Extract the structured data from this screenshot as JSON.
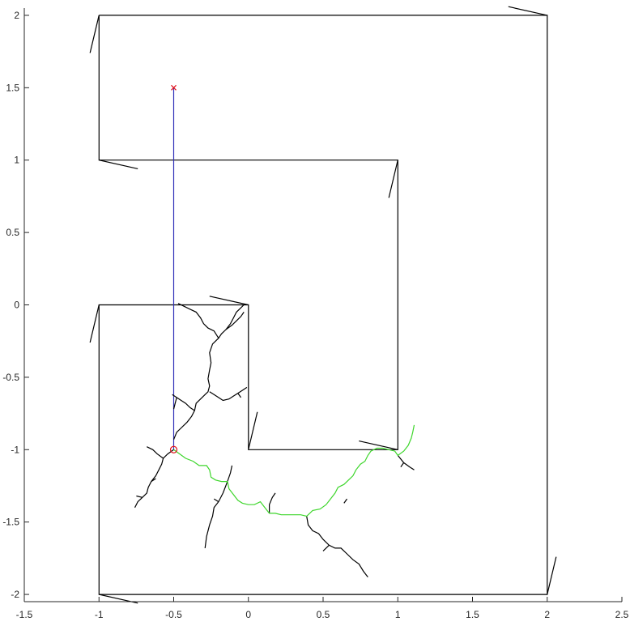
{
  "chart_data": {
    "type": "line",
    "title": "",
    "xlabel": "",
    "ylabel": "",
    "xlim": [
      -1.5,
      2.5
    ],
    "ylim": [
      -2.05,
      2.05
    ],
    "grid": false,
    "x_ticks": [
      {
        "value": -1.5,
        "label": "-1.5"
      },
      {
        "value": -1,
        "label": "-1"
      },
      {
        "value": -0.5,
        "label": "-0.5"
      },
      {
        "value": 0,
        "label": "0"
      },
      {
        "value": 0.5,
        "label": "0.5"
      },
      {
        "value": 1,
        "label": "1"
      },
      {
        "value": 1.5,
        "label": "1.5"
      },
      {
        "value": 2,
        "label": "2"
      },
      {
        "value": 2.5,
        "label": "2.5"
      }
    ],
    "y_ticks": [
      {
        "value": 2,
        "label": "2"
      },
      {
        "value": 1.5,
        "label": "1.5"
      },
      {
        "value": 1,
        "label": "1"
      },
      {
        "value": 0.5,
        "label": "0.5"
      },
      {
        "value": 0,
        "label": "0"
      },
      {
        "value": -0.5,
        "label": "-0.5"
      },
      {
        "value": -1,
        "label": "-1"
      },
      {
        "value": -1.5,
        "label": "-1.5"
      },
      {
        "value": -2,
        "label": "-2"
      }
    ],
    "series": [
      {
        "role": "obstacle-boundary",
        "color": "#000000",
        "points": [
          [
            -1,
            2
          ],
          [
            2,
            2
          ],
          [
            2,
            -2
          ],
          [
            -1,
            -2
          ],
          [
            -1,
            0
          ],
          [
            0,
            0
          ],
          [
            0,
            -1
          ],
          [
            1,
            -1
          ],
          [
            1,
            1
          ],
          [
            -1,
            1
          ],
          [
            -1,
            2
          ]
        ]
      },
      {
        "role": "corner-normals",
        "color": "#000000",
        "segments": [
          [
            [
              -1,
              2
            ],
            [
              -1.06,
              1.74
            ]
          ],
          [
            [
              2,
              2
            ],
            [
              1.74,
              2.06
            ]
          ],
          [
            [
              2,
              -2
            ],
            [
              2.06,
              -1.74
            ]
          ],
          [
            [
              -1,
              -2
            ],
            [
              -0.74,
              -2.06
            ]
          ],
          [
            [
              -1,
              0
            ],
            [
              -1.06,
              -0.26
            ]
          ],
          [
            [
              0,
              0
            ],
            [
              -0.26,
              0.06
            ]
          ],
          [
            [
              0,
              -1
            ],
            [
              0.06,
              -0.74
            ]
          ],
          [
            [
              1,
              -1
            ],
            [
              0.74,
              -0.94
            ]
          ],
          [
            [
              1,
              1
            ],
            [
              0.94,
              0.74
            ]
          ],
          [
            [
              -1,
              1
            ],
            [
              -0.74,
              0.94
            ]
          ]
        ]
      },
      {
        "role": "path-to-goal",
        "color": "#2e2eb8",
        "points": [
          [
            -0.5,
            -1
          ],
          [
            -0.5,
            1.5
          ]
        ]
      },
      {
        "role": "explored-tree",
        "color": "#000000",
        "polylines": [
          [
            [
              -0.5,
              -0.93
            ],
            [
              -0.48,
              -0.88
            ],
            [
              -0.45,
              -0.85
            ],
            [
              -0.41,
              -0.81
            ],
            [
              -0.38,
              -0.77
            ],
            [
              -0.36,
              -0.73
            ],
            [
              -0.35,
              -0.68
            ],
            [
              -0.32,
              -0.65
            ],
            [
              -0.29,
              -0.62
            ],
            [
              -0.27,
              -0.6
            ],
            [
              -0.26,
              -0.56
            ],
            [
              -0.27,
              -0.51
            ],
            [
              -0.26,
              -0.45
            ],
            [
              -0.25,
              -0.4
            ],
            [
              -0.26,
              -0.33
            ],
            [
              -0.24,
              -0.27
            ],
            [
              -0.2,
              -0.23
            ],
            [
              -0.18,
              -0.2
            ],
            [
              -0.15,
              -0.17
            ],
            [
              -0.12,
              -0.13
            ],
            [
              -0.1,
              -0.09
            ],
            [
              -0.08,
              -0.05
            ],
            [
              -0.05,
              -0.02
            ],
            [
              -0.03,
              0
            ]
          ],
          [
            [
              -0.2,
              -0.23
            ],
            [
              -0.23,
              -0.18
            ],
            [
              -0.27,
              -0.16
            ],
            [
              -0.3,
              -0.13
            ],
            [
              -0.32,
              -0.09
            ],
            [
              -0.35,
              -0.05
            ],
            [
              -0.39,
              -0.03
            ],
            [
              -0.43,
              -0.01
            ],
            [
              -0.47,
              0.01
            ]
          ],
          [
            [
              -0.15,
              -0.17
            ],
            [
              -0.11,
              -0.14
            ],
            [
              -0.08,
              -0.11
            ],
            [
              -0.05,
              -0.08
            ],
            [
              -0.03,
              -0.05
            ]
          ],
          [
            [
              -0.26,
              -0.6
            ],
            [
              -0.23,
              -0.62
            ],
            [
              -0.2,
              -0.64
            ],
            [
              -0.17,
              -0.66
            ],
            [
              -0.13,
              -0.65
            ],
            [
              -0.1,
              -0.63
            ],
            [
              -0.07,
              -0.61
            ],
            [
              -0.04,
              -0.59
            ],
            [
              -0.01,
              -0.57
            ]
          ],
          [
            [
              -0.07,
              -0.61
            ],
            [
              -0.05,
              -0.64
            ]
          ],
          [
            [
              -0.36,
              -0.73
            ],
            [
              -0.39,
              -0.71
            ],
            [
              -0.42,
              -0.68
            ],
            [
              -0.45,
              -0.66
            ],
            [
              -0.48,
              -0.64
            ],
            [
              -0.51,
              -0.62
            ]
          ],
          [
            [
              -0.48,
              -0.64
            ],
            [
              -0.49,
              -0.68
            ],
            [
              -0.5,
              -0.72
            ]
          ],
          [
            [
              -0.5,
              -1
            ],
            [
              -0.54,
              -1.03
            ],
            [
              -0.57,
              -1.06
            ],
            [
              -0.58,
              -1.1
            ],
            [
              -0.6,
              -1.14
            ],
            [
              -0.62,
              -1.18
            ],
            [
              -0.65,
              -1.22
            ],
            [
              -0.67,
              -1.26
            ],
            [
              -0.68,
              -1.3
            ],
            [
              -0.71,
              -1.33
            ],
            [
              -0.74,
              -1.36
            ],
            [
              -0.76,
              -1.4
            ]
          ],
          [
            [
              -0.57,
              -1.06
            ],
            [
              -0.61,
              -1.03
            ],
            [
              -0.64,
              -1.0
            ],
            [
              -0.68,
              -0.98
            ]
          ],
          [
            [
              -0.65,
              -1.22
            ],
            [
              -0.62,
              -1.2
            ]
          ],
          [
            [
              -0.71,
              -1.33
            ],
            [
              -0.75,
              -1.32
            ]
          ],
          [
            [
              -0.14,
              -1.22
            ],
            [
              -0.12,
              -1.16
            ],
            [
              -0.11,
              -1.11
            ]
          ],
          [
            [
              -0.14,
              -1.22
            ],
            [
              -0.17,
              -1.3
            ],
            [
              -0.2,
              -1.36
            ],
            [
              -0.23,
              -1.4
            ],
            [
              -0.24,
              -1.46
            ],
            [
              -0.26,
              -1.52
            ],
            [
              -0.28,
              -1.6
            ],
            [
              -0.29,
              -1.68
            ]
          ],
          [
            [
              -0.2,
              -1.36
            ],
            [
              -0.23,
              -1.34
            ]
          ],
          [
            [
              0.14,
              -1.44
            ],
            [
              0.14,
              -1.38
            ],
            [
              0.16,
              -1.33
            ],
            [
              0.18,
              -1.3
            ]
          ],
          [
            [
              0.39,
              -1.46
            ],
            [
              0.4,
              -1.52
            ],
            [
              0.43,
              -1.56
            ],
            [
              0.47,
              -1.58
            ],
            [
              0.5,
              -1.62
            ],
            [
              0.52,
              -1.64
            ],
            [
              0.54,
              -1.66
            ],
            [
              0.58,
              -1.68
            ],
            [
              0.62,
              -1.68
            ],
            [
              0.66,
              -1.72
            ],
            [
              0.7,
              -1.76
            ],
            [
              0.74,
              -1.79
            ],
            [
              0.77,
              -1.84
            ],
            [
              0.8,
              -1.88
            ]
          ],
          [
            [
              0.54,
              -1.66
            ],
            [
              0.5,
              -1.7
            ]
          ],
          [
            [
              0.64,
              -1.37
            ],
            [
              0.66,
              -1.34
            ]
          ],
          [
            [
              1.0,
              -1.04
            ],
            [
              1.04,
              -1.09
            ],
            [
              1.08,
              -1.12
            ],
            [
              1.11,
              -1.14
            ]
          ],
          [
            [
              1.04,
              -1.09
            ],
            [
              1.02,
              -1.12
            ]
          ]
        ]
      },
      {
        "role": "explored-tree-highlight",
        "color": "#3ed62c",
        "polylines": [
          [
            [
              -0.5,
              -1
            ],
            [
              -0.46,
              -1.03
            ],
            [
              -0.42,
              -1.06
            ],
            [
              -0.37,
              -1.08
            ],
            [
              -0.33,
              -1.11
            ],
            [
              -0.28,
              -1.11
            ],
            [
              -0.26,
              -1.14
            ],
            [
              -0.25,
              -1.19
            ],
            [
              -0.22,
              -1.21
            ],
            [
              -0.18,
              -1.22
            ],
            [
              -0.14,
              -1.22
            ],
            [
              -0.13,
              -1.27
            ],
            [
              -0.1,
              -1.31
            ],
            [
              -0.07,
              -1.35
            ],
            [
              -0.04,
              -1.37
            ],
            [
              0.0,
              -1.38
            ],
            [
              0.04,
              -1.38
            ],
            [
              0.08,
              -1.36
            ],
            [
              0.11,
              -1.4
            ],
            [
              0.14,
              -1.44
            ],
            [
              0.18,
              -1.44
            ],
            [
              0.22,
              -1.45
            ],
            [
              0.26,
              -1.45
            ],
            [
              0.3,
              -1.45
            ],
            [
              0.35,
              -1.45
            ],
            [
              0.39,
              -1.46
            ],
            [
              0.43,
              -1.42
            ],
            [
              0.48,
              -1.41
            ],
            [
              0.52,
              -1.38
            ],
            [
              0.55,
              -1.34
            ],
            [
              0.58,
              -1.3
            ],
            [
              0.6,
              -1.26
            ],
            [
              0.64,
              -1.24
            ],
            [
              0.67,
              -1.21
            ],
            [
              0.7,
              -1.18
            ],
            [
              0.72,
              -1.14
            ],
            [
              0.75,
              -1.1
            ],
            [
              0.78,
              -1.08
            ],
            [
              0.8,
              -1.04
            ],
            [
              0.82,
              -1.01
            ],
            [
              0.86,
              -0.99
            ],
            [
              0.9,
              -0.99
            ],
            [
              0.94,
              -1.0
            ],
            [
              0.98,
              -1.01
            ],
            [
              1.0,
              -1.04
            ],
            [
              1.04,
              -1.01
            ],
            [
              1.07,
              -0.97
            ],
            [
              1.09,
              -0.92
            ],
            [
              1.1,
              -0.88
            ],
            [
              1.11,
              -0.83
            ]
          ]
        ]
      }
    ],
    "markers": [
      {
        "role": "goal",
        "shape": "x",
        "color": "#e0141e",
        "x": -0.5,
        "y": 1.5
      },
      {
        "role": "start",
        "shape": "circle",
        "color": "#e0141e",
        "x": -0.5,
        "y": -1.0
      }
    ]
  }
}
